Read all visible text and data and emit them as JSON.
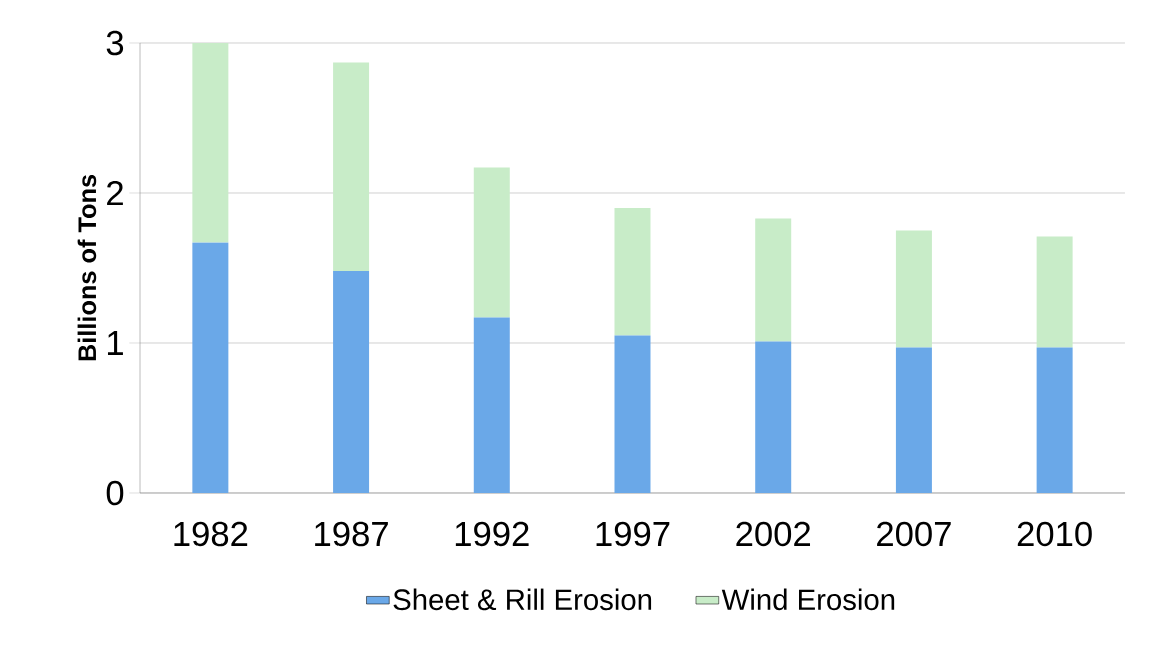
{
  "chart_data": {
    "type": "bar",
    "stacked": true,
    "ylabel": "Billions of Tons",
    "categories": [
      "1982",
      "1987",
      "1992",
      "1997",
      "2002",
      "2007",
      "2010"
    ],
    "series": [
      {
        "name": "Sheet & Rill Erosion",
        "color": "#6aa8e8",
        "values": [
          1.67,
          1.48,
          1.17,
          1.05,
          1.01,
          0.97,
          0.97
        ]
      },
      {
        "name": "Wind Erosion",
        "color": "#c8ecc8",
        "values": [
          1.33,
          1.39,
          1.0,
          0.85,
          0.82,
          0.78,
          0.74
        ]
      }
    ],
    "ylim": [
      0,
      3
    ],
    "yticks": [
      0,
      1,
      2,
      3
    ],
    "grid": "y",
    "legend": "bottom"
  }
}
